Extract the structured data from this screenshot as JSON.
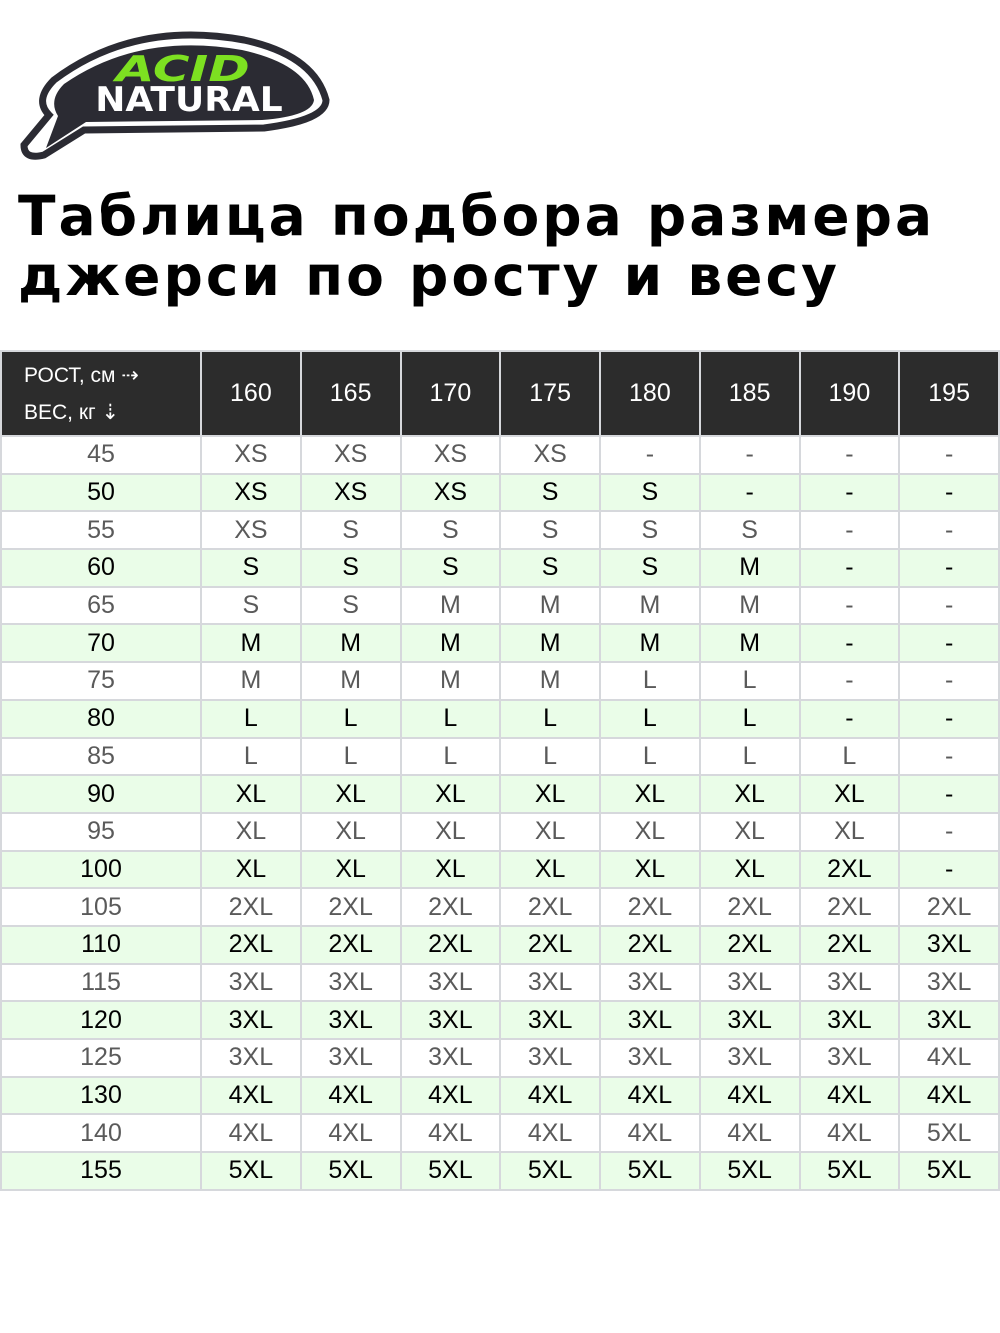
{
  "logo": {
    "line1": "ACID",
    "line2": "NATURAL",
    "accent": "#7de021"
  },
  "title": {
    "line1": "Таблица подбора размера",
    "line2": "джерси по росту и весу"
  },
  "table": {
    "corner": {
      "height_label": "РОСТ, см ⇢",
      "weight_label": "ВЕС, кг ⇣"
    },
    "heights": [
      "160",
      "165",
      "170",
      "175",
      "180",
      "185",
      "190",
      "195"
    ],
    "rows": [
      {
        "weight": "45",
        "sizes": [
          "XS",
          "XS",
          "XS",
          "XS",
          "-",
          "-",
          "-",
          "-"
        ]
      },
      {
        "weight": "50",
        "sizes": [
          "XS",
          "XS",
          "XS",
          "S",
          "S",
          "-",
          "-",
          "-"
        ]
      },
      {
        "weight": "55",
        "sizes": [
          "XS",
          "S",
          "S",
          "S",
          "S",
          "S",
          "-",
          "-"
        ]
      },
      {
        "weight": "60",
        "sizes": [
          "S",
          "S",
          "S",
          "S",
          "S",
          "M",
          "-",
          "-"
        ]
      },
      {
        "weight": "65",
        "sizes": [
          "S",
          "S",
          "M",
          "M",
          "M",
          "M",
          "-",
          "-"
        ]
      },
      {
        "weight": "70",
        "sizes": [
          "M",
          "M",
          "M",
          "M",
          "M",
          "M",
          "-",
          "-"
        ]
      },
      {
        "weight": "75",
        "sizes": [
          "M",
          "M",
          "M",
          "M",
          "L",
          "L",
          "-",
          "-"
        ]
      },
      {
        "weight": "80",
        "sizes": [
          "L",
          "L",
          "L",
          "L",
          "L",
          "L",
          "-",
          "-"
        ]
      },
      {
        "weight": "85",
        "sizes": [
          "L",
          "L",
          "L",
          "L",
          "L",
          "L",
          "L",
          "-"
        ]
      },
      {
        "weight": "90",
        "sizes": [
          "XL",
          "XL",
          "XL",
          "XL",
          "XL",
          "XL",
          "XL",
          "-"
        ]
      },
      {
        "weight": "95",
        "sizes": [
          "XL",
          "XL",
          "XL",
          "XL",
          "XL",
          "XL",
          "XL",
          "-"
        ]
      },
      {
        "weight": "100",
        "sizes": [
          "XL",
          "XL",
          "XL",
          "XL",
          "XL",
          "XL",
          "2XL",
          "-"
        ]
      },
      {
        "weight": "105",
        "sizes": [
          "2XL",
          "2XL",
          "2XL",
          "2XL",
          "2XL",
          "2XL",
          "2XL",
          "2XL"
        ]
      },
      {
        "weight": "110",
        "sizes": [
          "2XL",
          "2XL",
          "2XL",
          "2XL",
          "2XL",
          "2XL",
          "2XL",
          "3XL"
        ]
      },
      {
        "weight": "115",
        "sizes": [
          "3XL",
          "3XL",
          "3XL",
          "3XL",
          "3XL",
          "3XL",
          "3XL",
          "3XL"
        ]
      },
      {
        "weight": "120",
        "sizes": [
          "3XL",
          "3XL",
          "3XL",
          "3XL",
          "3XL",
          "3XL",
          "3XL",
          "3XL"
        ]
      },
      {
        "weight": "125",
        "sizes": [
          "3XL",
          "3XL",
          "3XL",
          "3XL",
          "3XL",
          "3XL",
          "3XL",
          "4XL"
        ]
      },
      {
        "weight": "130",
        "sizes": [
          "4XL",
          "4XL",
          "4XL",
          "4XL",
          "4XL",
          "4XL",
          "4XL",
          "4XL"
        ]
      },
      {
        "weight": "140",
        "sizes": [
          "4XL",
          "4XL",
          "4XL",
          "4XL",
          "4XL",
          "4XL",
          "4XL",
          "5XL"
        ]
      },
      {
        "weight": "155",
        "sizes": [
          "5XL",
          "5XL",
          "5XL",
          "5XL",
          "5XL",
          "5XL",
          "5XL",
          "5XL"
        ]
      }
    ]
  }
}
